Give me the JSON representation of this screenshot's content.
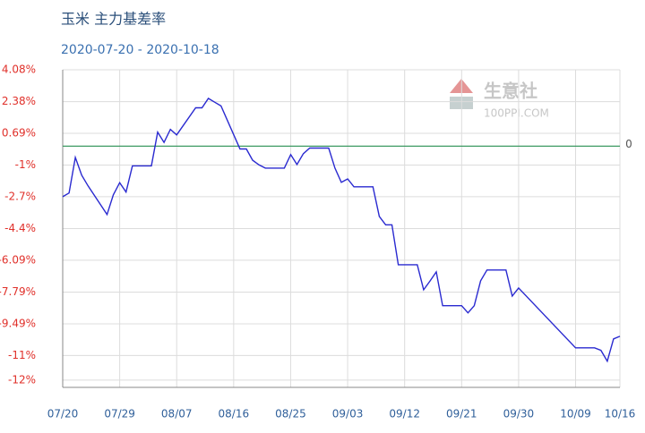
{
  "chart_data": {
    "type": "line",
    "title": "玉米  主力基差率",
    "subtitle": "2020-07-20 - 2020-10-18",
    "watermark": {
      "name": "生意社",
      "site": "100PPI.COM"
    },
    "x": [
      "07/20",
      "07/21",
      "07/22",
      "07/23",
      "07/24",
      "07/27",
      "07/28",
      "07/29",
      "07/30",
      "07/31",
      "08/03",
      "08/04",
      "08/05",
      "08/06",
      "08/07",
      "08/10",
      "08/11",
      "08/12",
      "08/13",
      "08/14",
      "08/17",
      "08/18",
      "08/19",
      "08/20",
      "08/21",
      "08/24",
      "08/25",
      "08/26",
      "08/27",
      "08/28",
      "08/31",
      "09/01",
      "09/02",
      "09/03",
      "09/04",
      "09/07",
      "09/08",
      "09/09",
      "09/10",
      "09/11",
      "09/14",
      "09/15",
      "09/16",
      "09/17",
      "09/18",
      "09/21",
      "09/22",
      "09/23",
      "09/24",
      "09/25",
      "09/28",
      "09/29",
      "09/30",
      "10/09",
      "10/12",
      "10/13",
      "10/14",
      "10/15",
      "10/16"
    ],
    "series": [
      {
        "name": "主力基差率",
        "color": "#2a2ad0",
        "values": [
          -2.7,
          -2.5,
          -0.6,
          -1.55,
          -2.12,
          -3.65,
          -2.6,
          -1.95,
          -2.45,
          -1.05,
          -1.05,
          0.75,
          0.2,
          0.9,
          0.6,
          2.05,
          2.05,
          2.55,
          2.35,
          2.15,
          -0.15,
          -0.15,
          -0.75,
          -1.0,
          -1.17,
          -1.17,
          -0.45,
          -0.98,
          -0.4,
          -0.1,
          -0.1,
          -1.17,
          -1.93,
          -1.75,
          -2.17,
          -2.17,
          -3.75,
          -4.2,
          -4.2,
          -6.33,
          -6.33,
          -7.67,
          -7.2,
          -6.71,
          -8.52,
          -8.52,
          -8.9,
          -8.52,
          -7.19,
          -6.61,
          -6.61,
          -8.0,
          -7.57,
          -10.77,
          -10.77,
          -10.9,
          -11.48,
          -10.29,
          -10.15
        ]
      }
    ],
    "xticks": [
      "07/20",
      "07/29",
      "08/07",
      "08/16",
      "08/25",
      "09/03",
      "09/12",
      "09/21",
      "09/30",
      "10/09",
      "10/16"
    ],
    "ylim": [
      -12.88,
      4.08
    ],
    "yticks": [
      {
        "value": 4.08,
        "label": "4.08%"
      },
      {
        "value": 2.38,
        "label": "2.38%"
      },
      {
        "value": 0.69,
        "label": "0.69%"
      },
      {
        "value": -1.01,
        "label": "-1%"
      },
      {
        "value": -2.7,
        "label": "-2.7%"
      },
      {
        "value": -4.4,
        "label": "-4.4%"
      },
      {
        "value": -6.09,
        "label": "-6.09%"
      },
      {
        "value": -7.79,
        "label": "-7.79%"
      },
      {
        "value": -9.49,
        "label": "-9.49%"
      },
      {
        "value": -11.18,
        "label": "-11%"
      },
      {
        "value": -12.49,
        "label": "-12%"
      }
    ],
    "reference_line": {
      "value": 0,
      "label": "0",
      "color": "#3c9a62"
    },
    "grid": true
  }
}
